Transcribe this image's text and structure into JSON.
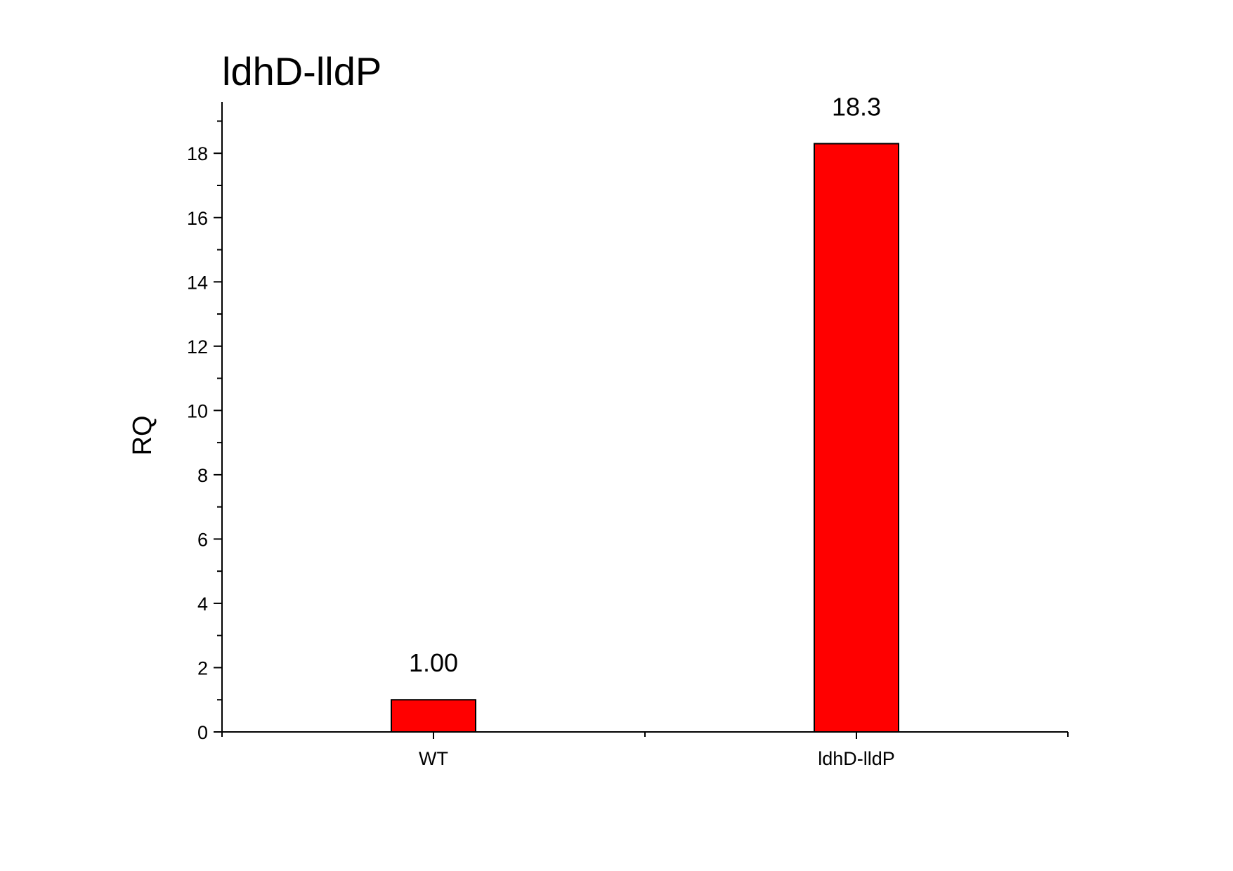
{
  "chart_data": {
    "type": "bar",
    "title": "ldhD-lldP",
    "xlabel": "",
    "ylabel": "RQ",
    "categories": [
      "WT",
      "ldhD-lldP"
    ],
    "values": [
      1.0,
      18.3
    ],
    "data_labels": [
      "1.00",
      "18.3"
    ],
    "ylim": [
      0,
      19.6
    ],
    "yticks": [
      0,
      2,
      4,
      6,
      8,
      10,
      12,
      14,
      16,
      18
    ],
    "ytick_labels": [
      "0",
      "2",
      "4",
      "6",
      "8",
      "10",
      "12",
      "14",
      "16",
      "18"
    ],
    "grid": false,
    "legend": "none",
    "bar_color": "#ff0000",
    "bar_edge_color": "#000000"
  }
}
